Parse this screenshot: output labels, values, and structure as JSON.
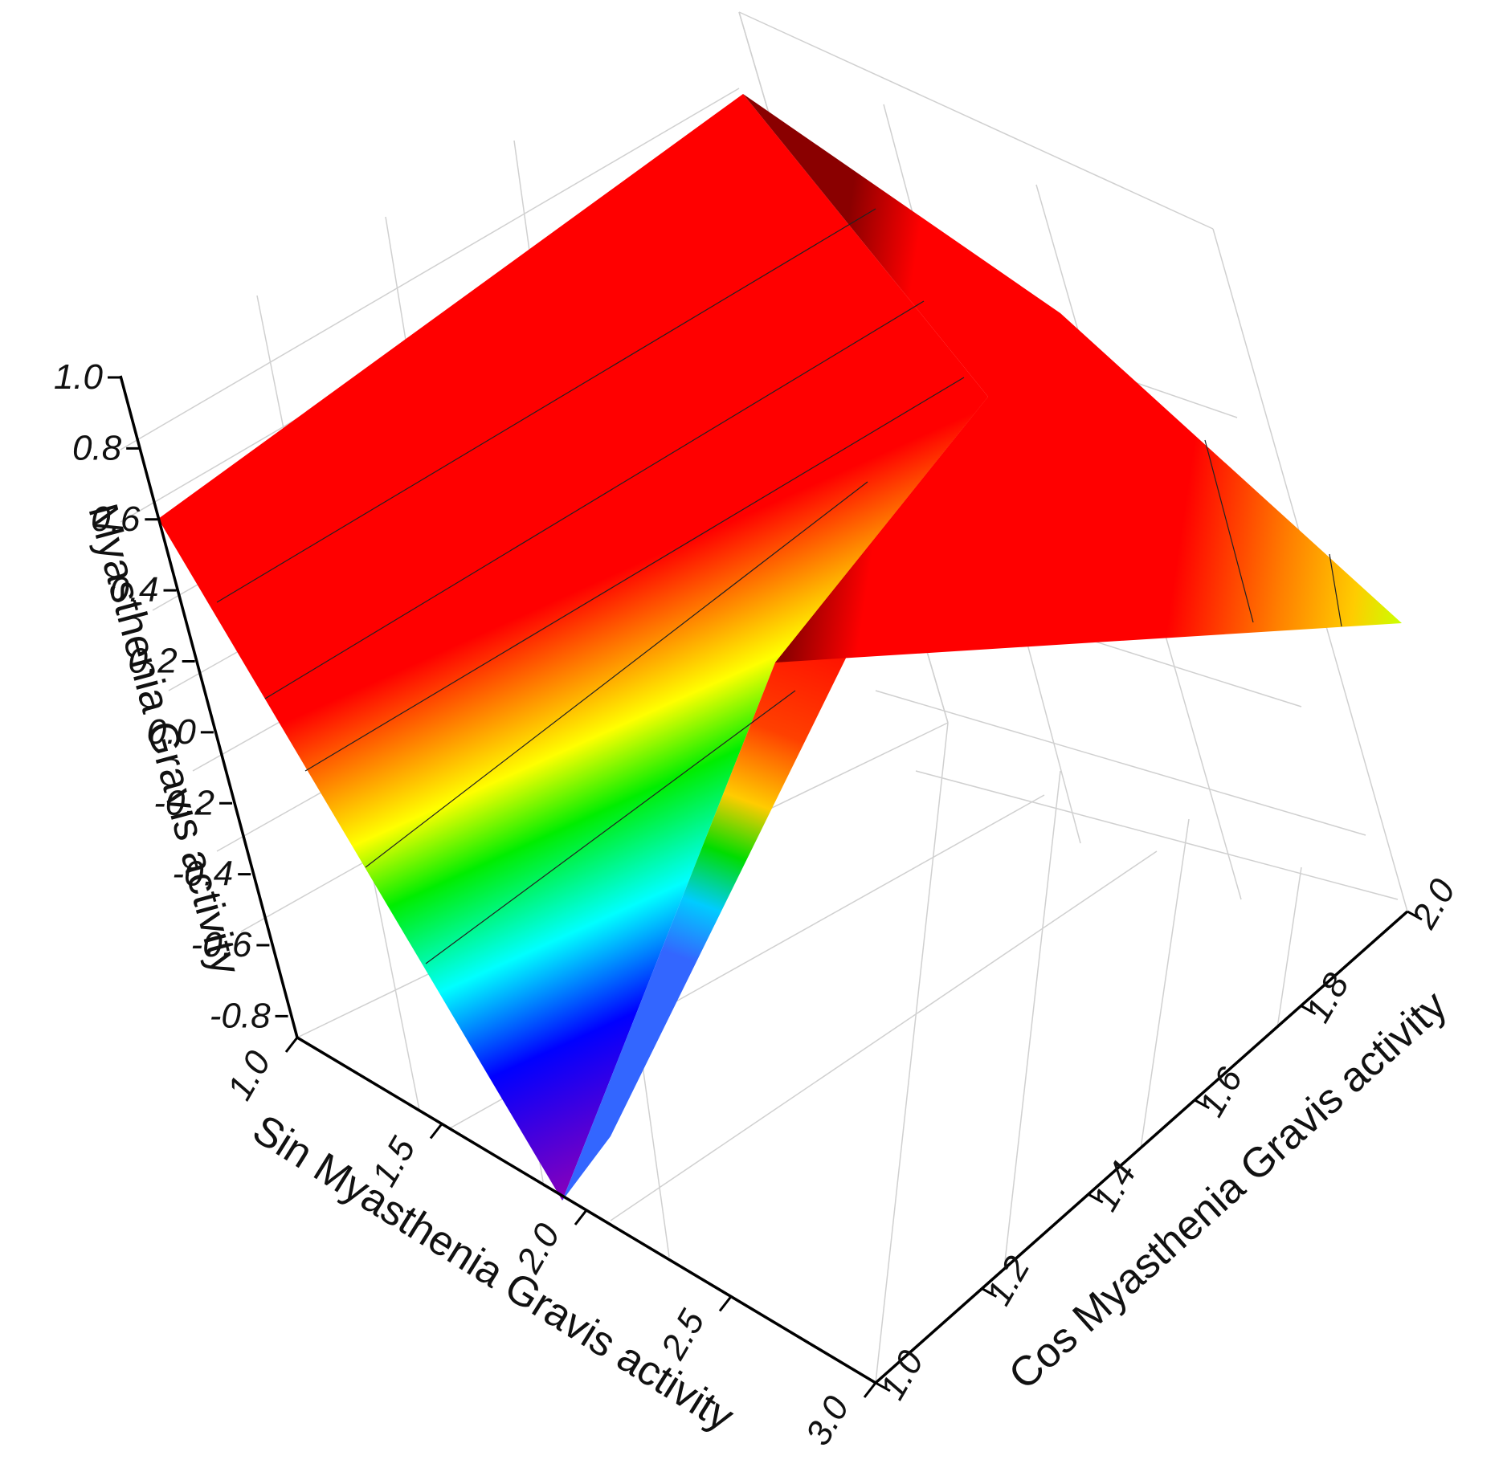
{
  "chart_data": {
    "type": "surface3d",
    "title": "",
    "zlabel": "Myasthenia Gravis  activity",
    "xlabel": "Sin Myasthenia Gravis activity",
    "ylabel": "Cos Myasthenia Gravis activity",
    "z_ticks": [
      "1.0",
      "0.8",
      "0.6",
      "0.4",
      "0.2",
      "0.0",
      "-0.2",
      "-0.4",
      "-0.6",
      "-0.8"
    ],
    "x_ticks": [
      "1.0",
      "1.5",
      "2.0",
      "2.5",
      "3.0"
    ],
    "y_ticks": [
      "1.0",
      "1.2",
      "1.4",
      "1.6",
      "1.8",
      "2.0"
    ],
    "xlim": [
      1.0,
      3.0
    ],
    "ylim": [
      1.0,
      2.0
    ],
    "zlim": [
      -0.9,
      1.0
    ],
    "grid": true,
    "colormap": "rainbow",
    "colormap_range": [
      "#7a00b4",
      "#ff0000"
    ],
    "surface_points": [
      {
        "x": 1.0,
        "y": 2.0,
        "z": 0.93
      },
      {
        "x": 1.0,
        "y": 1.0,
        "z": 0.62
      },
      {
        "x": 2.0,
        "y": 1.0,
        "z": -0.85
      },
      {
        "x": 2.0,
        "y": 2.0,
        "z": 0.64
      },
      {
        "x": 2.0,
        "y": 1.5,
        "z": 0.18
      },
      {
        "x": 2.4,
        "y": 1.9,
        "z": 0.8
      },
      {
        "x": 3.0,
        "y": 2.0,
        "z": 0.5
      }
    ]
  }
}
